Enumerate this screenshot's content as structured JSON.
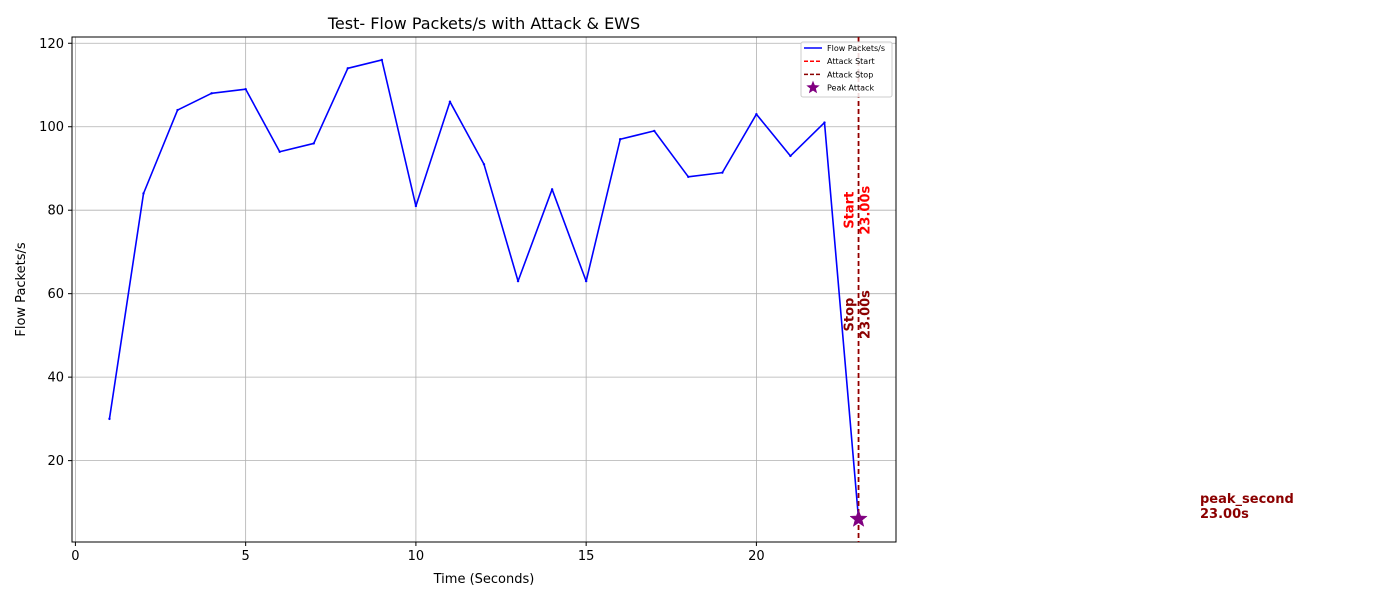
{
  "chart_data": {
    "type": "line",
    "title": "Test- Flow Packets/s with Attack & EWS",
    "xlabel": "Time (Seconds)",
    "ylabel": "Flow Packets/s",
    "xlim": [
      -0.1,
      24.1
    ],
    "ylim": [
      0.5,
      121.5
    ],
    "xticks": [
      0,
      5,
      10,
      15,
      20
    ],
    "yticks": [
      20,
      40,
      60,
      80,
      100,
      120
    ],
    "grid": true,
    "legend_position": "top-right",
    "series": [
      {
        "name": "Flow Packets/s",
        "color": "#0000ff",
        "x": [
          1,
          2,
          3,
          4,
          5,
          6,
          7,
          8,
          9,
          10,
          11,
          12,
          13,
          14,
          15,
          16,
          17,
          18,
          19,
          20,
          21,
          22,
          23
        ],
        "y": [
          30,
          84,
          104,
          108,
          109,
          94,
          96,
          114,
          116,
          81,
          106,
          91,
          63,
          85,
          63,
          97,
          99,
          88,
          89,
          103,
          93,
          101,
          6
        ]
      }
    ],
    "vlines": [
      {
        "name": "Attack Start",
        "x": 23.0,
        "color": "#ff0000",
        "style": "dashed",
        "label_word": "Start",
        "label_value": "23.00s",
        "label_y": 80
      },
      {
        "name": "Attack Stop",
        "x": 23.0,
        "color": "#8b0000",
        "style": "dashed",
        "label_word": "Stop",
        "label_value": "23.00s",
        "label_y": 55
      }
    ],
    "peak": {
      "name": "Peak Attack",
      "x": 23.0,
      "y": 6,
      "color": "#800080",
      "marker": "star"
    },
    "peak_annotation": {
      "line1": "peak_second",
      "line2": "23.00s",
      "color": "#8b0000"
    }
  }
}
